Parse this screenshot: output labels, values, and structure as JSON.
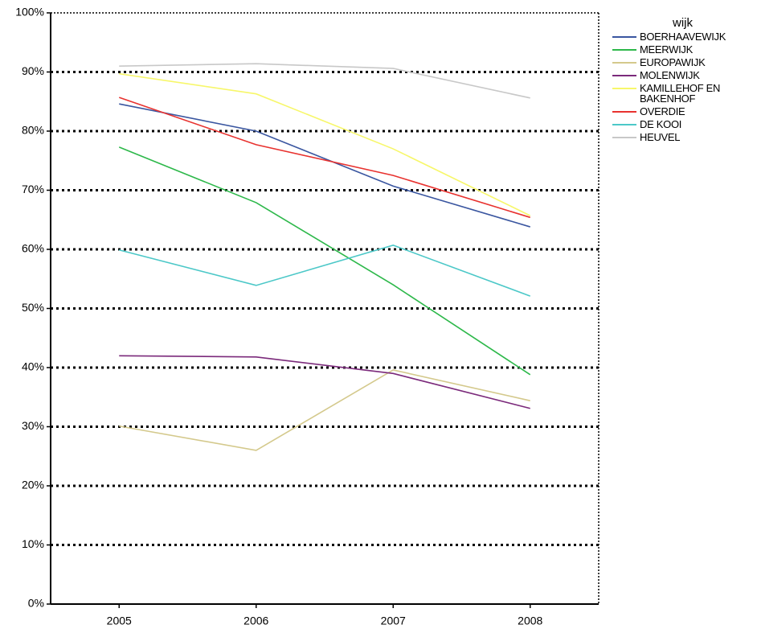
{
  "chart_data": {
    "type": "line",
    "legend_title": "wijk",
    "x": [
      2005,
      2006,
      2007,
      2008
    ],
    "xlim": [
      2004.5,
      2008.5
    ],
    "xticks": [
      2005,
      2006,
      2007,
      2008
    ],
    "ylim": [
      0,
      100
    ],
    "yticks": [
      {
        "value": 0,
        "label": "0%"
      },
      {
        "value": 10,
        "label": "10%"
      },
      {
        "value": 20,
        "label": "20%"
      },
      {
        "value": 30,
        "label": "30%"
      },
      {
        "value": 40,
        "label": "40%"
      },
      {
        "value": 50,
        "label": "50%"
      },
      {
        "value": 60,
        "label": "60%"
      },
      {
        "value": 70,
        "label": "70%"
      },
      {
        "value": 80,
        "label": "80%"
      },
      {
        "value": 90,
        "label": "90%"
      },
      {
        "value": 100,
        "label": "100%"
      }
    ],
    "grid": true,
    "legend": "right",
    "series": [
      {
        "name": "BOERHAAVEWIJK",
        "color": "#3a56a0",
        "values": [
          84.6,
          80.0,
          70.7,
          63.8
        ]
      },
      {
        "name": "MEERWIJK",
        "color": "#2db84a",
        "values": [
          77.3,
          67.9,
          54.0,
          38.8
        ]
      },
      {
        "name": "EUROPAWIJK",
        "color": "#d4c98c",
        "values": [
          30.1,
          26.0,
          39.6,
          34.4
        ]
      },
      {
        "name": "MOLENWIJK",
        "color": "#7b2a7b",
        "values": [
          42.0,
          41.8,
          39.0,
          33.1
        ]
      },
      {
        "name": "KAMILLEHOF EN BAKENHOF",
        "color": "#f7f76a",
        "values": [
          89.7,
          86.3,
          77.0,
          65.7
        ]
      },
      {
        "name": "OVERDIE",
        "color": "#e8322f",
        "values": [
          85.7,
          77.7,
          72.5,
          65.4
        ]
      },
      {
        "name": "DE KOOI",
        "color": "#4cc8c8",
        "values": [
          59.9,
          53.9,
          60.7,
          52.1
        ]
      },
      {
        "name": "HEUVEL",
        "color": "#c8c8c8",
        "values": [
          91.0,
          91.4,
          90.6,
          85.6
        ]
      }
    ]
  }
}
